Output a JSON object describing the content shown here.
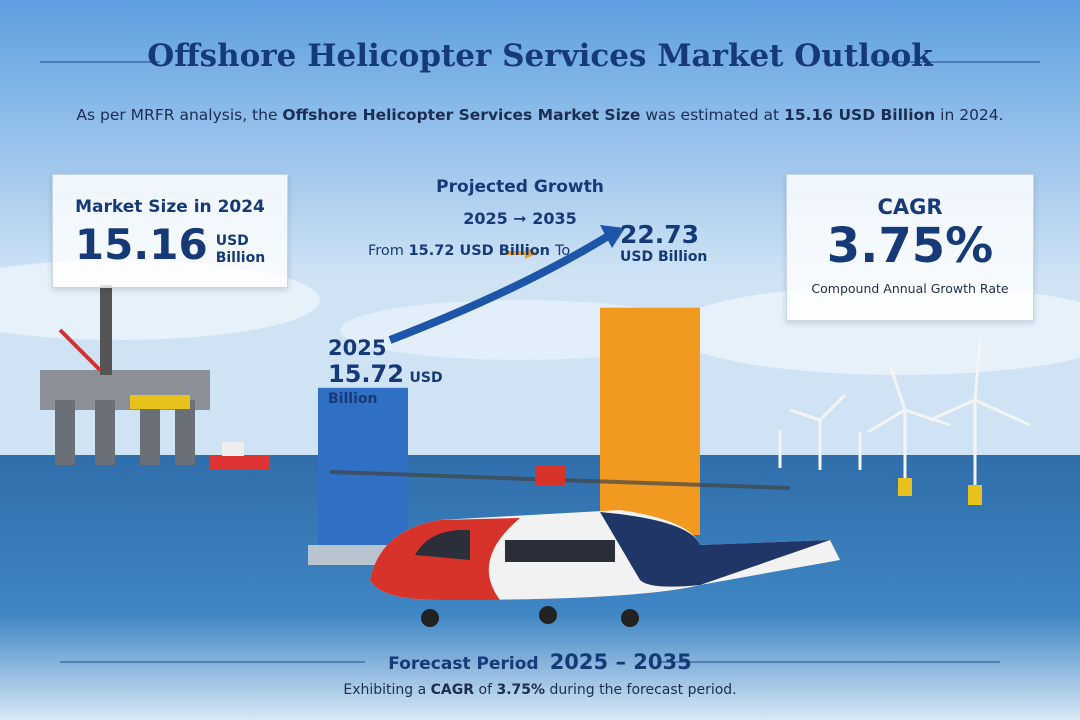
{
  "header": {
    "title": "Offshore Helicopter Services Market Outlook",
    "subtitle": [
      "As per MRFR analysis, the ",
      "Offshore Helicopter Services Market Size",
      " was estimated at ",
      "15.16 USD Billion",
      " in 2024."
    ]
  },
  "market_size": {
    "heading": "Market Size in 2024",
    "value": "15.16",
    "unit_top": "USD",
    "unit_bottom": "Billion"
  },
  "growth": {
    "heading": "Projected Growth",
    "start_year": "2025",
    "end_year": "2035",
    "from_text": "From ",
    "from_value": "15.72 USD Billion",
    "to_text": "To"
  },
  "bars": [
    {
      "year": "2025",
      "value": 15.72,
      "unit": "USD Billion",
      "color": "#2f6fc4"
    },
    {
      "value": 22.73,
      "unit": "USD Billion",
      "color": "#f29a1f"
    }
  ],
  "cagr": {
    "heading": "CAGR",
    "value": "3.75%",
    "caption": "Compound Annual Growth Rate"
  },
  "footer": {
    "label": "Forecast Period",
    "period": "2025 – 2035",
    "note": [
      "Exhibiting a ",
      "CAGR",
      " of ",
      "3.75%",
      " during the forecast period."
    ]
  }
}
